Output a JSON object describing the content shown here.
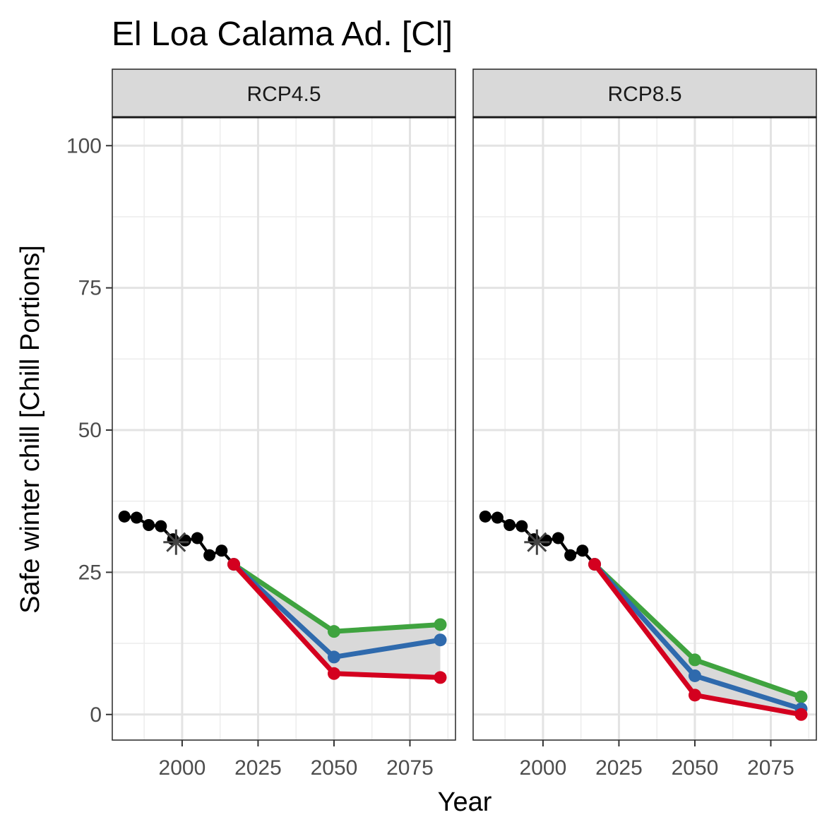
{
  "chart_data": {
    "type": "line",
    "title": "El Loa Calama Ad. [Cl]",
    "xlabel": "Year",
    "ylabel": "Safe winter chill [Chill Portions]",
    "xlim": [
      1977,
      2090
    ],
    "ylim": [
      -4.5,
      105
    ],
    "x_ticks": [
      2000,
      2025,
      2050,
      2075
    ],
    "y_ticks": [
      0,
      25,
      50,
      75,
      100
    ],
    "grid": true,
    "legend": "none",
    "colors": {
      "historic": "#000000",
      "optimistic": "#3fa33f",
      "median": "#2f6aad",
      "pessimistic": "#d4001f",
      "band": "#d9d9d9",
      "baseline_marker": "#444444"
    },
    "panels": [
      {
        "label": "RCP4.5",
        "historic": {
          "x": [
            1981,
            1985,
            1989,
            1993,
            1997,
            2001,
            2005,
            2009,
            2013,
            2017
          ],
          "y": [
            34.8,
            34.6,
            33.3,
            33.1,
            30.8,
            30.6,
            31.0,
            28.0,
            28.8,
            26.4
          ]
        },
        "baseline": {
          "x": 1998,
          "y": 30.3
        },
        "scenarios": {
          "optimistic": {
            "x": [
              2017,
              2050,
              2085
            ],
            "y": [
              26.4,
              14.6,
              15.8
            ]
          },
          "median": {
            "x": [
              2017,
              2050,
              2085
            ],
            "y": [
              26.4,
              10.1,
              13.1
            ]
          },
          "pessimistic": {
            "x": [
              2017,
              2050,
              2085
            ],
            "y": [
              26.4,
              7.2,
              6.5
            ]
          }
        }
      },
      {
        "label": "RCP8.5",
        "historic": {
          "x": [
            1981,
            1985,
            1989,
            1993,
            1997,
            2001,
            2005,
            2009,
            2013,
            2017
          ],
          "y": [
            34.8,
            34.6,
            33.3,
            33.1,
            30.8,
            30.6,
            31.0,
            28.0,
            28.8,
            26.4
          ]
        },
        "baseline": {
          "x": 1998,
          "y": 30.3
        },
        "scenarios": {
          "optimistic": {
            "x": [
              2017,
              2050,
              2085
            ],
            "y": [
              26.4,
              9.6,
              3.1
            ]
          },
          "median": {
            "x": [
              2017,
              2050,
              2085
            ],
            "y": [
              26.4,
              6.8,
              1.0
            ]
          },
          "pessimistic": {
            "x": [
              2017,
              2050,
              2085
            ],
            "y": [
              26.4,
              3.4,
              0.0
            ]
          }
        }
      }
    ]
  }
}
